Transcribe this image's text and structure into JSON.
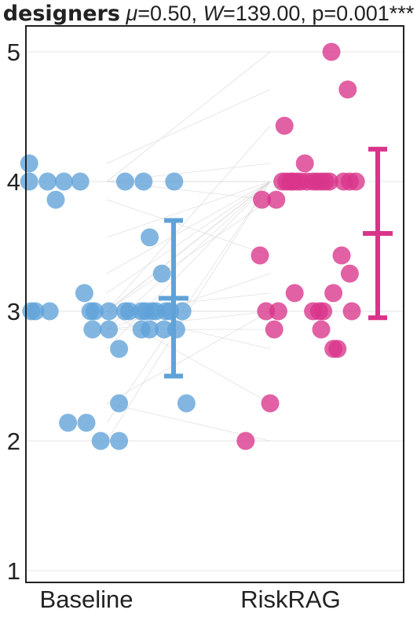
{
  "title": {
    "group": "designers",
    "mu_symbol": "μ",
    "mu_text": "=0.50, ",
    "w_symbol": "W",
    "w_text": "=139.00, p=0.001***"
  },
  "chart_data": {
    "type": "scatter",
    "categories": [
      "Baseline",
      "RiskRAG"
    ],
    "ylim": [
      0.9,
      5.2
    ],
    "yticks": [
      1,
      2,
      3,
      4,
      5
    ],
    "grid": "horizontal",
    "colors": {
      "Baseline": "#5fa2d8",
      "RiskRAG": "#d9348a",
      "pairline": "#d9d9d9",
      "grid": "#e6e6e6"
    },
    "series": [
      {
        "name": "Baseline",
        "summary": {
          "mean": 3.1,
          "low": 2.5,
          "high": 3.7
        },
        "points": [
          {
            "x": -0.28,
            "y": 4.14
          },
          {
            "x": -0.28,
            "y": 4.0
          },
          {
            "x": -0.19,
            "y": 4.0
          },
          {
            "x": -0.11,
            "y": 4.0
          },
          {
            "x": -0.03,
            "y": 4.0
          },
          {
            "x": 0.19,
            "y": 4.0
          },
          {
            "x": 0.28,
            "y": 4.0
          },
          {
            "x": 0.43,
            "y": 4.0
          },
          {
            "x": -0.15,
            "y": 3.86
          },
          {
            "x": 0.31,
            "y": 3.57
          },
          {
            "x": 0.37,
            "y": 3.29
          },
          {
            "x": -0.01,
            "y": 3.14
          },
          {
            "x": -0.27,
            "y": 3.0
          },
          {
            "x": -0.25,
            "y": 3.0
          },
          {
            "x": -0.18,
            "y": 3.0
          },
          {
            "x": 0.02,
            "y": 3.0
          },
          {
            "x": 0.04,
            "y": 3.0
          },
          {
            "x": 0.11,
            "y": 3.0
          },
          {
            "x": 0.19,
            "y": 3.0
          },
          {
            "x": 0.21,
            "y": 3.0
          },
          {
            "x": 0.27,
            "y": 3.0
          },
          {
            "x": 0.29,
            "y": 3.0
          },
          {
            "x": 0.32,
            "y": 3.0
          },
          {
            "x": 0.34,
            "y": 3.0
          },
          {
            "x": 0.39,
            "y": 3.0
          },
          {
            "x": 0.41,
            "y": 3.0
          },
          {
            "x": 0.47,
            "y": 3.0
          },
          {
            "x": 0.03,
            "y": 2.86
          },
          {
            "x": 0.11,
            "y": 2.86
          },
          {
            "x": 0.27,
            "y": 2.86
          },
          {
            "x": 0.31,
            "y": 2.86
          },
          {
            "x": 0.38,
            "y": 2.86
          },
          {
            "x": 0.44,
            "y": 2.86
          },
          {
            "x": 0.16,
            "y": 2.71
          },
          {
            "x": 0.16,
            "y": 2.29
          },
          {
            "x": 0.49,
            "y": 2.29
          },
          {
            "x": -0.09,
            "y": 2.14
          },
          {
            "x": 0.0,
            "y": 2.14
          },
          {
            "x": 0.07,
            "y": 2.0
          },
          {
            "x": 0.16,
            "y": 2.0
          }
        ]
      },
      {
        "name": "RiskRAG",
        "summary": {
          "mean": 3.6,
          "low": 2.95,
          "high": 4.25
        },
        "points": [
          {
            "x": 1.2,
            "y": 5.0
          },
          {
            "x": 1.28,
            "y": 4.71
          },
          {
            "x": 0.97,
            "y": 4.43
          },
          {
            "x": 1.07,
            "y": 4.14
          },
          {
            "x": 0.96,
            "y": 4.0
          },
          {
            "x": 0.98,
            "y": 4.0
          },
          {
            "x": 1.0,
            "y": 4.0
          },
          {
            "x": 1.01,
            "y": 4.0
          },
          {
            "x": 1.03,
            "y": 4.0
          },
          {
            "x": 1.05,
            "y": 4.0
          },
          {
            "x": 1.08,
            "y": 4.0
          },
          {
            "x": 1.11,
            "y": 4.0
          },
          {
            "x": 1.13,
            "y": 4.0
          },
          {
            "x": 1.15,
            "y": 4.0
          },
          {
            "x": 1.17,
            "y": 4.0
          },
          {
            "x": 1.19,
            "y": 4.0
          },
          {
            "x": 1.26,
            "y": 4.0
          },
          {
            "x": 1.29,
            "y": 4.0
          },
          {
            "x": 1.32,
            "y": 4.0
          },
          {
            "x": 0.86,
            "y": 3.86
          },
          {
            "x": 0.93,
            "y": 3.86
          },
          {
            "x": 0.85,
            "y": 3.43
          },
          {
            "x": 1.25,
            "y": 3.43
          },
          {
            "x": 1.29,
            "y": 3.29
          },
          {
            "x": 1.02,
            "y": 3.14
          },
          {
            "x": 1.21,
            "y": 3.14
          },
          {
            "x": 0.88,
            "y": 3.0
          },
          {
            "x": 0.94,
            "y": 3.0
          },
          {
            "x": 1.11,
            "y": 3.0
          },
          {
            "x": 1.14,
            "y": 3.0
          },
          {
            "x": 1.16,
            "y": 3.0
          },
          {
            "x": 1.3,
            "y": 3.0
          },
          {
            "x": 0.92,
            "y": 2.86
          },
          {
            "x": 1.15,
            "y": 2.86
          },
          {
            "x": 1.21,
            "y": 2.71
          },
          {
            "x": 1.23,
            "y": 2.71
          },
          {
            "x": 0.9,
            "y": 2.29
          },
          {
            "x": 0.78,
            "y": 2.0
          }
        ]
      }
    ],
    "pair_lines": [
      [
        4.0,
        4.0
      ],
      [
        4.0,
        3.86
      ],
      [
        4.0,
        4.14
      ],
      [
        3.86,
        3.43
      ],
      [
        3.57,
        4.0
      ],
      [
        3.29,
        4.0
      ],
      [
        3.14,
        4.0
      ],
      [
        3.0,
        4.0
      ],
      [
        3.0,
        4.0
      ],
      [
        3.0,
        3.86
      ],
      [
        3.0,
        4.43
      ],
      [
        3.0,
        4.0
      ],
      [
        3.0,
        3.14
      ],
      [
        3.0,
        3.0
      ],
      [
        2.86,
        4.0
      ],
      [
        2.86,
        3.0
      ],
      [
        2.86,
        2.86
      ],
      [
        2.71,
        4.0
      ],
      [
        2.29,
        3.0
      ],
      [
        2.14,
        4.0
      ],
      [
        2.0,
        4.0
      ],
      [
        4.0,
        5.0
      ],
      [
        4.14,
        4.71
      ],
      [
        3.0,
        2.29
      ],
      [
        2.86,
        3.29
      ],
      [
        2.29,
        2.0
      ],
      [
        3.0,
        2.71
      ]
    ]
  }
}
